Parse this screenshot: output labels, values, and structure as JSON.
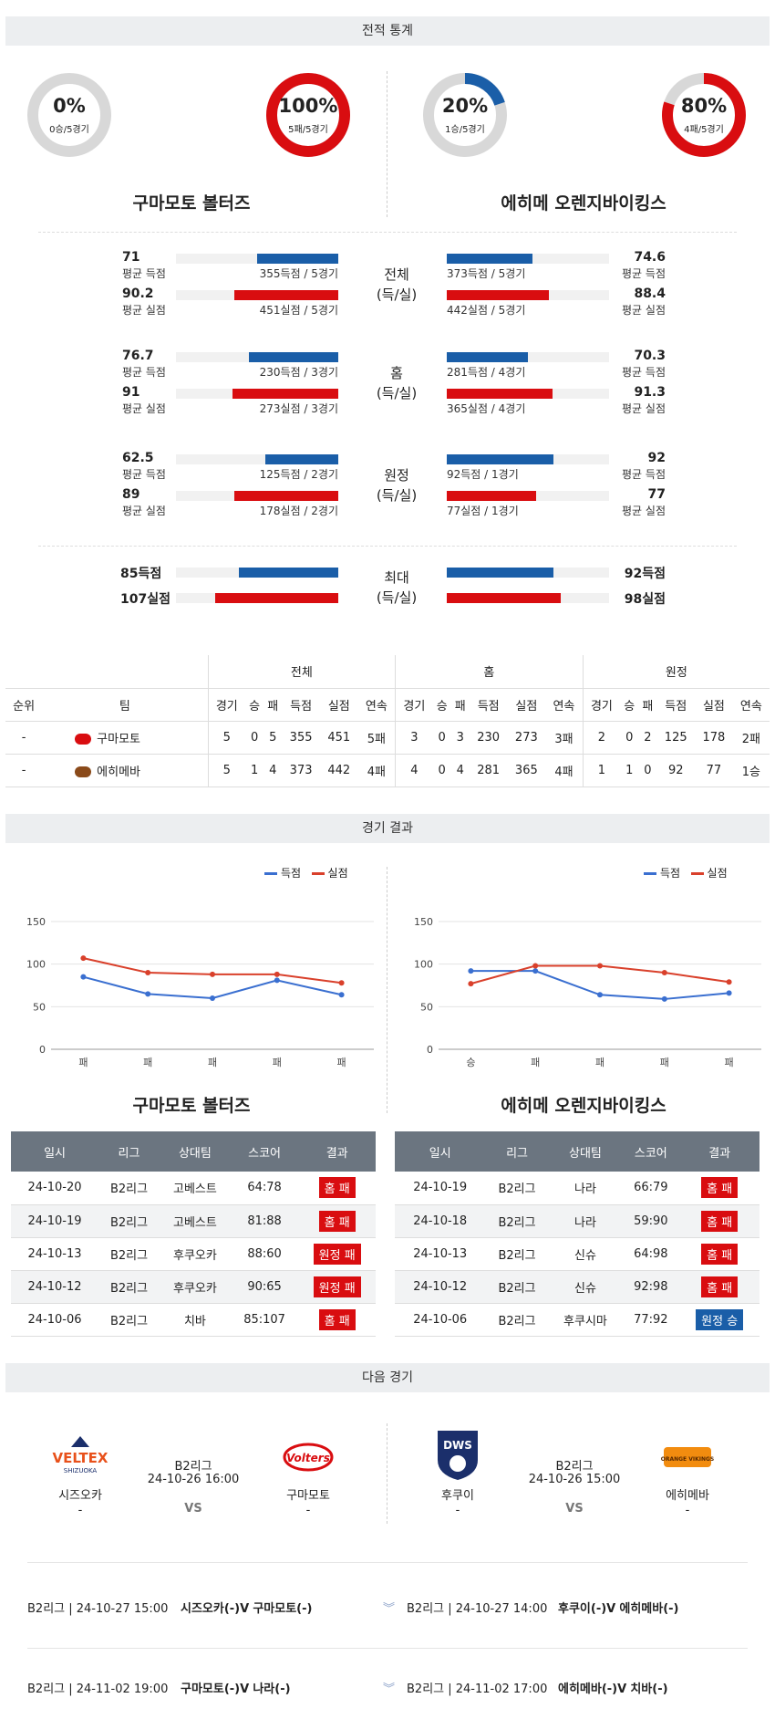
{
  "sections": {
    "record": "전적 통계",
    "results": "경기 결과",
    "next": "다음 경기"
  },
  "donuts": [
    {
      "pct": "0%",
      "sub": "0승/5경기",
      "value": 0,
      "color": "#1a5ea8"
    },
    {
      "pct": "100%",
      "sub": "5패/5경기",
      "value": 1,
      "color": "#d90d10"
    },
    {
      "pct": "20%",
      "sub": "1승/5경기",
      "value": 0.2,
      "color": "#1a5ea8"
    },
    {
      "pct": "80%",
      "sub": "4패/5경기",
      "value": 0.8,
      "color": "#d90d10"
    }
  ],
  "teams": {
    "left": "구마모토 볼터즈",
    "right": "에히메 오렌지바이킹스"
  },
  "stat_groups": [
    {
      "cat1": "전체",
      "cat2": "(득/실)",
      "rows": [
        {
          "l_num": "71",
          "l_sub": "평균 득점",
          "l_bar": "355득점 / 5경기",
          "l_pct": 0.5,
          "r_num": "74.6",
          "r_sub": "평균 득점",
          "r_bar": "373득점 / 5경기",
          "r_pct": 0.53,
          "color": "blue"
        },
        {
          "l_num": "90.2",
          "l_sub": "평균 실점",
          "l_bar": "451실점 / 5경기",
          "l_pct": 0.64,
          "r_num": "88.4",
          "r_sub": "평균 실점",
          "r_bar": "442실점 / 5경기",
          "r_pct": 0.63,
          "color": "red"
        }
      ]
    },
    {
      "cat1": "홈",
      "cat2": "(득/실)",
      "rows": [
        {
          "l_num": "76.7",
          "l_sub": "평균 득점",
          "l_bar": "230득점 / 3경기",
          "l_pct": 0.55,
          "r_num": "70.3",
          "r_sub": "평균 득점",
          "r_bar": "281득점 / 4경기",
          "r_pct": 0.5,
          "color": "blue"
        },
        {
          "l_num": "91",
          "l_sub": "평균 실점",
          "l_bar": "273실점 / 3경기",
          "l_pct": 0.65,
          "r_num": "91.3",
          "r_sub": "평균 실점",
          "r_bar": "365실점 / 4경기",
          "r_pct": 0.65,
          "color": "red"
        }
      ]
    },
    {
      "cat1": "원정",
      "cat2": "(득/실)",
      "rows": [
        {
          "l_num": "62.5",
          "l_sub": "평균 득점",
          "l_bar": "125득점 / 2경기",
          "l_pct": 0.45,
          "r_num": "92",
          "r_sub": "평균 득점",
          "r_bar": "92득점 / 1경기",
          "r_pct": 0.66,
          "color": "blue"
        },
        {
          "l_num": "89",
          "l_sub": "평균 실점",
          "l_bar": "178실점 / 2경기",
          "l_pct": 0.64,
          "r_num": "77",
          "r_sub": "평균 실점",
          "r_bar": "77실점 / 1경기",
          "r_pct": 0.55,
          "color": "red"
        }
      ]
    }
  ],
  "max": {
    "cat1": "최대",
    "cat2": "(득/실)",
    "l1": "85득점",
    "l2": "107실점",
    "r1": "92득점",
    "r2": "98실점",
    "l1_pct": 0.61,
    "l2_pct": 0.76,
    "r1_pct": 0.66,
    "r2_pct": 0.7
  },
  "standings": {
    "groups": [
      "전체",
      "홈",
      "원정"
    ],
    "cols": [
      "순위",
      "팀",
      "경기",
      "승",
      "패",
      "득점",
      "실점",
      "연속",
      "경기",
      "승",
      "패",
      "득점",
      "실점",
      "연속",
      "경기",
      "승",
      "패",
      "득점",
      "실점",
      "연속"
    ],
    "rows": [
      [
        "-",
        "구마모토",
        "5",
        "0",
        "5",
        "355",
        "451",
        "5패",
        "3",
        "0",
        "3",
        "230",
        "273",
        "3패",
        "2",
        "0",
        "2",
        "125",
        "178",
        "2패"
      ],
      [
        "-",
        "에히메바",
        "5",
        "1",
        "4",
        "373",
        "442",
        "4패",
        "4",
        "0",
        "4",
        "281",
        "365",
        "4패",
        "1",
        "1",
        "0",
        "92",
        "77",
        "1승"
      ]
    ]
  },
  "legend": {
    "scored": "득점",
    "allowed": "실점"
  },
  "chart_data": [
    {
      "type": "line",
      "x": [
        "패",
        "패",
        "패",
        "패",
        "패"
      ],
      "series": [
        {
          "name": "득점",
          "values": [
            85,
            65,
            60,
            81,
            64
          ],
          "color": "#3a6fd0"
        },
        {
          "name": "실점",
          "values": [
            107,
            90,
            88,
            88,
            78
          ],
          "color": "#d9402b"
        }
      ],
      "ylim": [
        0,
        150
      ],
      "yticks": [
        "0",
        "50",
        "100",
        "150"
      ]
    },
    {
      "type": "line",
      "x": [
        "승",
        "패",
        "패",
        "패",
        "패"
      ],
      "series": [
        {
          "name": "득점",
          "values": [
            92,
            92,
            64,
            59,
            66
          ],
          "color": "#3a6fd0"
        },
        {
          "name": "실점",
          "values": [
            77,
            98,
            98,
            90,
            79
          ],
          "color": "#d9402b"
        }
      ],
      "ylim": [
        0,
        150
      ],
      "yticks": [
        "0",
        "50",
        "100",
        "150"
      ]
    }
  ],
  "results": {
    "headers": [
      "일시",
      "리그",
      "상대팀",
      "스코어",
      "결과"
    ],
    "left": [
      [
        "24-10-20",
        "B2리그",
        "고베스트",
        "64:78",
        "홈 패"
      ],
      [
        "24-10-19",
        "B2리그",
        "고베스트",
        "81:88",
        "홈 패"
      ],
      [
        "24-10-13",
        "B2리그",
        "후쿠오카",
        "88:60",
        "원정 패"
      ],
      [
        "24-10-12",
        "B2리그",
        "후쿠오카",
        "90:65",
        "원정 패"
      ],
      [
        "24-10-06",
        "B2리그",
        "치바",
        "85:107",
        "홈 패"
      ]
    ],
    "right": [
      [
        "24-10-19",
        "B2리그",
        "나라",
        "66:79",
        "홈 패"
      ],
      [
        "24-10-18",
        "B2리그",
        "나라",
        "59:90",
        "홈 패"
      ],
      [
        "24-10-13",
        "B2리그",
        "신슈",
        "64:98",
        "홈 패"
      ],
      [
        "24-10-12",
        "B2리그",
        "신슈",
        "92:98",
        "홈 패"
      ],
      [
        "24-10-06",
        "B2리그",
        "후쿠시마",
        "77:92",
        "원정 승"
      ]
    ]
  },
  "next": {
    "left": {
      "home": "시즈오카",
      "away": "구마모토",
      "league": "B2리그",
      "date": "24-10-26 16:00",
      "vs": "VS",
      "home_rank": "-",
      "away_rank": "-",
      "home_logo": "VELTEX",
      "home_logo_sub": "SHIZUOKA",
      "away_logo": "Volters"
    },
    "right": {
      "home": "후쿠이",
      "away": "에히메바",
      "league": "B2리그",
      "date": "24-10-26 15:00",
      "vs": "VS",
      "home_rank": "-",
      "away_rank": "-",
      "home_logo": "DWS",
      "away_logo": "ORANGE VIKINGS"
    }
  },
  "future": [
    {
      "l_info": "B2리그 | 24-10-27 15:00",
      "l_match": "시즈오카(-)V",
      "l_match2": "구마모토(-)",
      "r_info": "B2리그 | 24-10-27 14:00",
      "r_match": "후쿠이(-)V",
      "r_match2": "에히메바(-)"
    },
    {
      "l_info": "B2리그 | 24-11-02 19:00",
      "l_match": "구마모토(-)V",
      "l_match2": "나라(-)",
      "r_info": "B2리그 | 24-11-02 17:00",
      "r_match": "에히메바(-)V",
      "r_match2": "치바(-)"
    }
  ]
}
